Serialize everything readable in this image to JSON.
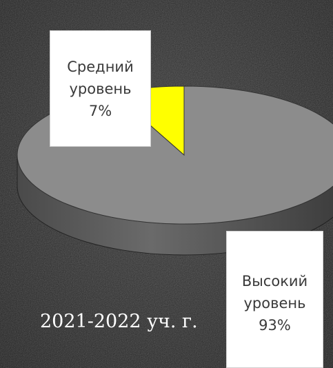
{
  "chart_data": {
    "type": "pie",
    "slices": [
      {
        "label_line1": "Средний",
        "label_line2": "уровень",
        "value_text": "7%",
        "value": 7,
        "color": "#ffff00"
      },
      {
        "label_line1": "Высокий",
        "label_line2": "уровень",
        "value_text": "93%",
        "value": 93,
        "color": "#8c8c8c"
      }
    ]
  },
  "caption": "2021-2022 уч. г.",
  "colors": {
    "background": "#2b2b2b",
    "slice_medium": "#ffff00",
    "slice_high": "#8c8c8c",
    "label_text": "#3a3a3a",
    "caption_text": "#ffffff"
  }
}
